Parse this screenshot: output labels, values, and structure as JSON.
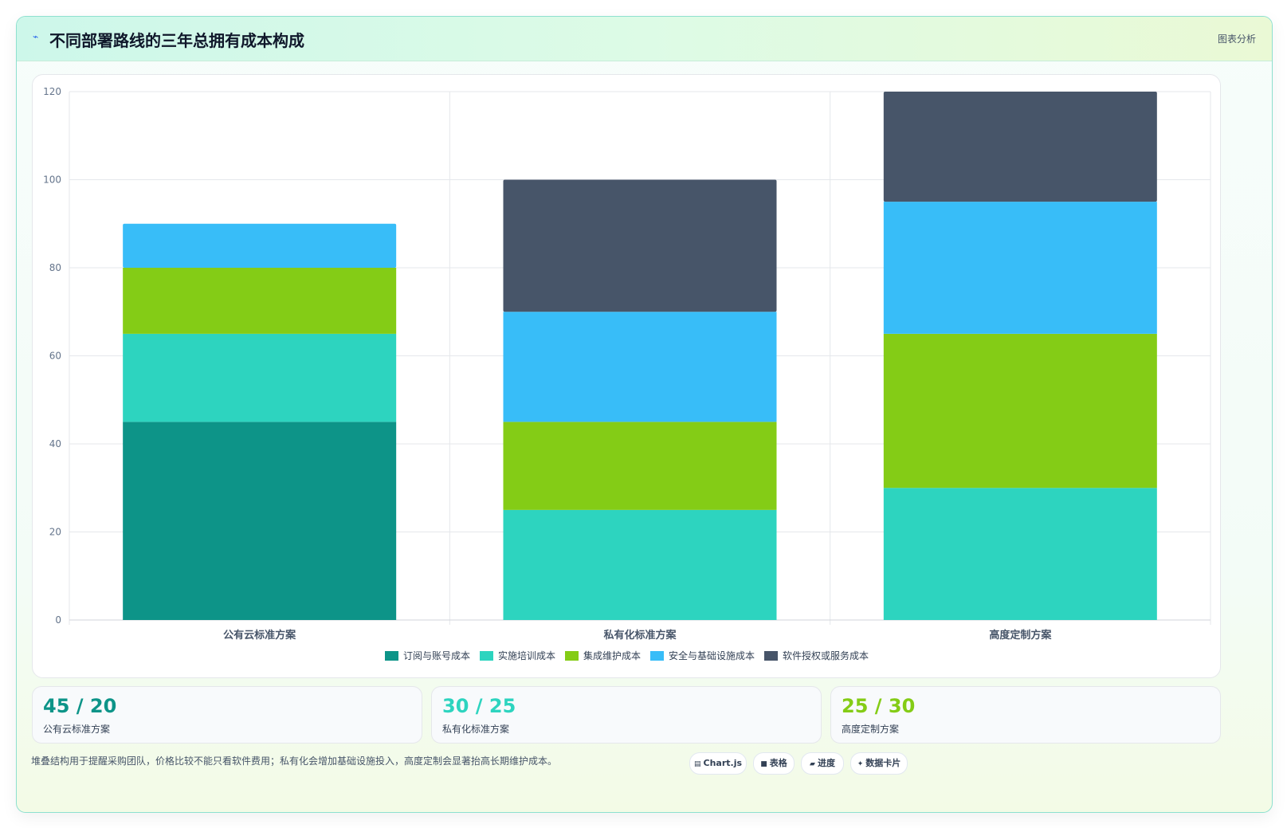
{
  "header": {
    "title": "不同部署路线的三年总拥有成本构成",
    "tag": "图表分析",
    "icon": "trend-icon"
  },
  "chart_data": {
    "type": "bar",
    "stacked": true,
    "categories": [
      "公有云标准方案",
      "私有化标准方案",
      "高度定制方案"
    ],
    "series": [
      {
        "name": "订阅与账号成本",
        "color": "#0d9488",
        "values": [
          45,
          0,
          0
        ]
      },
      {
        "name": "实施培训成本",
        "color": "#2dd4bf",
        "values": [
          20,
          25,
          30
        ]
      },
      {
        "name": "集成维护成本",
        "color": "#84cc16",
        "values": [
          15,
          20,
          35
        ]
      },
      {
        "name": "安全与基础设施成本",
        "color": "#38bdf8",
        "values": [
          10,
          25,
          30
        ]
      },
      {
        "name": "软件授权或服务成本",
        "color": "#475569",
        "values": [
          0,
          30,
          25
        ]
      }
    ],
    "ylim": [
      0,
      120
    ],
    "yticks": [
      0,
      20,
      40,
      60,
      80,
      100,
      120
    ],
    "grid": true,
    "legend_position": "bottom"
  },
  "kpis": [
    {
      "value": "45 / 20",
      "label": "公有云标准方案",
      "color": "#0d9488"
    },
    {
      "value": "30 / 25",
      "label": "私有化标准方案",
      "color": "#2dd4bf"
    },
    {
      "value": "25 / 30",
      "label": "高度定制方案",
      "color": "#84cc16"
    }
  ],
  "footnote": "堆叠结构用于提醒采购团队，价格比较不能只看软件费用；私有化会增加基础设施投入，高度定制会显著抬高长期维护成本。",
  "chips": [
    {
      "glyph": "▤",
      "label": "Chart.js"
    },
    {
      "glyph": "■",
      "label": "表格"
    },
    {
      "glyph": "▰",
      "label": "进度"
    },
    {
      "glyph": "✦",
      "label": "数据卡片"
    }
  ]
}
